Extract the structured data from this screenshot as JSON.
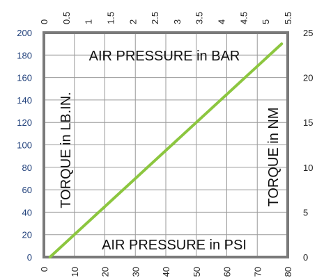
{
  "chart_data": {
    "type": "line",
    "top_axis": {
      "label": "AIR PRESSURE in BAR",
      "min": 0,
      "max": 5.5,
      "ticks": [
        "0",
        "0.5",
        "1",
        "1.5",
        "2",
        "2.5",
        "3",
        "3.5",
        "4",
        "4.5",
        "5",
        "5.5"
      ]
    },
    "bottom_axis": {
      "label": "AIR PRESSURE in PSI",
      "min": 0,
      "max": 80,
      "ticks": [
        "0",
        "10",
        "20",
        "30",
        "40",
        "50",
        "60",
        "70",
        "80"
      ]
    },
    "left_axis": {
      "label": "TORQUE in LB.IN.",
      "min": 0,
      "max": 200,
      "ticks": [
        "0",
        "20",
        "40",
        "60",
        "80",
        "100",
        "120",
        "140",
        "160",
        "180",
        "200"
      ]
    },
    "right_axis": {
      "label": "TORQUE in NM",
      "min": 0,
      "max": 25,
      "ticks": [
        "0",
        "5",
        "10",
        "15",
        "20",
        "25"
      ]
    },
    "series": [
      {
        "x_psi": [
          2,
          78
        ],
        "y_lbin": [
          0,
          190
        ]
      }
    ],
    "grid": true,
    "colors": {
      "line": "#8cc63f",
      "frame": "#7a7a7a",
      "grid": "#9a9a9a",
      "left_ticks": "#1f3f7a"
    }
  }
}
